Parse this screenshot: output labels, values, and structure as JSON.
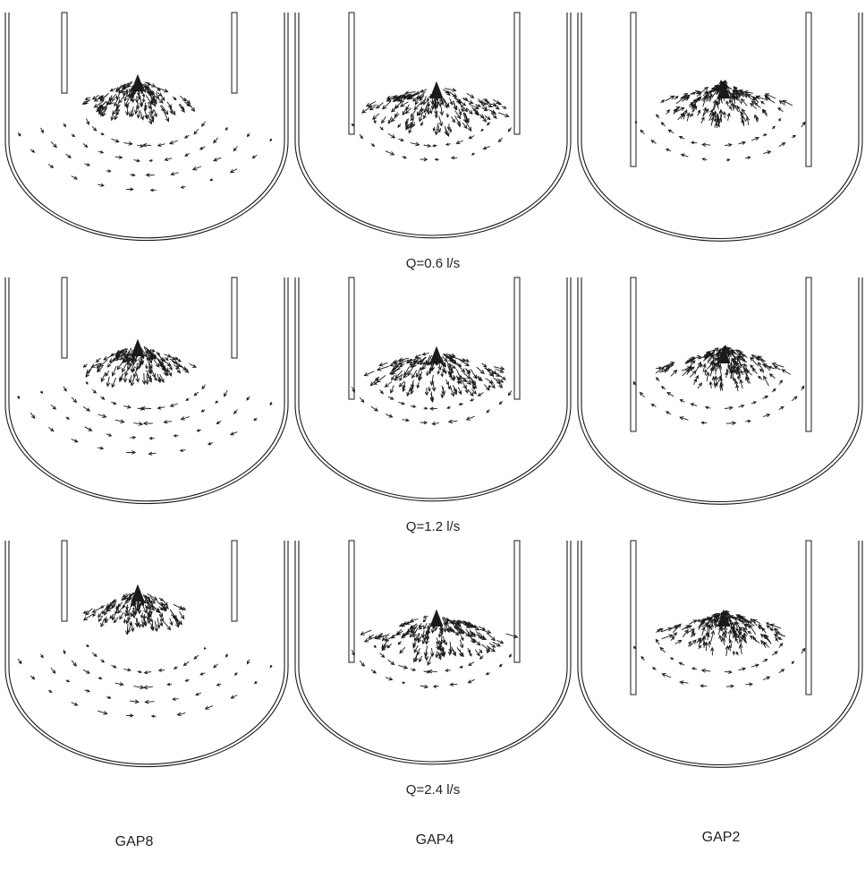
{
  "rows": [
    {
      "flow_label": "Q=0.6 l/s"
    },
    {
      "flow_label": "Q=1.2 l/s"
    },
    {
      "flow_label": "Q=2.4 l/s"
    }
  ],
  "columns": [
    {
      "gap_label": "GAP8"
    },
    {
      "gap_label": "GAP4"
    },
    {
      "gap_label": "GAP2"
    }
  ],
  "colors": {
    "ink": "#1a1a1a",
    "background": "#ffffff"
  }
}
